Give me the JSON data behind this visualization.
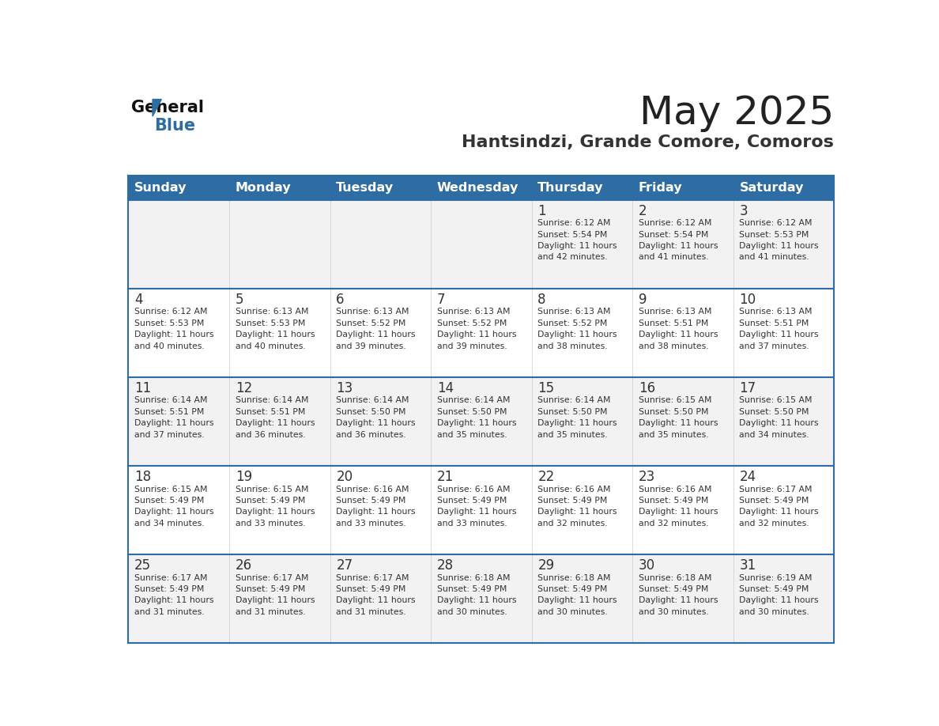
{
  "title": "May 2025",
  "subtitle": "Hantsindzi, Grande Comore, Comoros",
  "header_bg": "#2E6DA4",
  "header_text_color": "#FFFFFF",
  "days_of_week": [
    "Sunday",
    "Monday",
    "Tuesday",
    "Wednesday",
    "Thursday",
    "Friday",
    "Saturday"
  ],
  "cell_bg_odd": "#F2F2F2",
  "cell_bg_even": "#FFFFFF",
  "cell_text_color": "#333333",
  "grid_line_color": "#2E6DA4",
  "title_color": "#222222",
  "subtitle_color": "#333333",
  "calendar": [
    [
      {
        "day": "",
        "info": ""
      },
      {
        "day": "",
        "info": ""
      },
      {
        "day": "",
        "info": ""
      },
      {
        "day": "",
        "info": ""
      },
      {
        "day": "1",
        "info": "Sunrise: 6:12 AM\nSunset: 5:54 PM\nDaylight: 11 hours\nand 42 minutes."
      },
      {
        "day": "2",
        "info": "Sunrise: 6:12 AM\nSunset: 5:54 PM\nDaylight: 11 hours\nand 41 minutes."
      },
      {
        "day": "3",
        "info": "Sunrise: 6:12 AM\nSunset: 5:53 PM\nDaylight: 11 hours\nand 41 minutes."
      }
    ],
    [
      {
        "day": "4",
        "info": "Sunrise: 6:12 AM\nSunset: 5:53 PM\nDaylight: 11 hours\nand 40 minutes."
      },
      {
        "day": "5",
        "info": "Sunrise: 6:13 AM\nSunset: 5:53 PM\nDaylight: 11 hours\nand 40 minutes."
      },
      {
        "day": "6",
        "info": "Sunrise: 6:13 AM\nSunset: 5:52 PM\nDaylight: 11 hours\nand 39 minutes."
      },
      {
        "day": "7",
        "info": "Sunrise: 6:13 AM\nSunset: 5:52 PM\nDaylight: 11 hours\nand 39 minutes."
      },
      {
        "day": "8",
        "info": "Sunrise: 6:13 AM\nSunset: 5:52 PM\nDaylight: 11 hours\nand 38 minutes."
      },
      {
        "day": "9",
        "info": "Sunrise: 6:13 AM\nSunset: 5:51 PM\nDaylight: 11 hours\nand 38 minutes."
      },
      {
        "day": "10",
        "info": "Sunrise: 6:13 AM\nSunset: 5:51 PM\nDaylight: 11 hours\nand 37 minutes."
      }
    ],
    [
      {
        "day": "11",
        "info": "Sunrise: 6:14 AM\nSunset: 5:51 PM\nDaylight: 11 hours\nand 37 minutes."
      },
      {
        "day": "12",
        "info": "Sunrise: 6:14 AM\nSunset: 5:51 PM\nDaylight: 11 hours\nand 36 minutes."
      },
      {
        "day": "13",
        "info": "Sunrise: 6:14 AM\nSunset: 5:50 PM\nDaylight: 11 hours\nand 36 minutes."
      },
      {
        "day": "14",
        "info": "Sunrise: 6:14 AM\nSunset: 5:50 PM\nDaylight: 11 hours\nand 35 minutes."
      },
      {
        "day": "15",
        "info": "Sunrise: 6:14 AM\nSunset: 5:50 PM\nDaylight: 11 hours\nand 35 minutes."
      },
      {
        "day": "16",
        "info": "Sunrise: 6:15 AM\nSunset: 5:50 PM\nDaylight: 11 hours\nand 35 minutes."
      },
      {
        "day": "17",
        "info": "Sunrise: 6:15 AM\nSunset: 5:50 PM\nDaylight: 11 hours\nand 34 minutes."
      }
    ],
    [
      {
        "day": "18",
        "info": "Sunrise: 6:15 AM\nSunset: 5:49 PM\nDaylight: 11 hours\nand 34 minutes."
      },
      {
        "day": "19",
        "info": "Sunrise: 6:15 AM\nSunset: 5:49 PM\nDaylight: 11 hours\nand 33 minutes."
      },
      {
        "day": "20",
        "info": "Sunrise: 6:16 AM\nSunset: 5:49 PM\nDaylight: 11 hours\nand 33 minutes."
      },
      {
        "day": "21",
        "info": "Sunrise: 6:16 AM\nSunset: 5:49 PM\nDaylight: 11 hours\nand 33 minutes."
      },
      {
        "day": "22",
        "info": "Sunrise: 6:16 AM\nSunset: 5:49 PM\nDaylight: 11 hours\nand 32 minutes."
      },
      {
        "day": "23",
        "info": "Sunrise: 6:16 AM\nSunset: 5:49 PM\nDaylight: 11 hours\nand 32 minutes."
      },
      {
        "day": "24",
        "info": "Sunrise: 6:17 AM\nSunset: 5:49 PM\nDaylight: 11 hours\nand 32 minutes."
      }
    ],
    [
      {
        "day": "25",
        "info": "Sunrise: 6:17 AM\nSunset: 5:49 PM\nDaylight: 11 hours\nand 31 minutes."
      },
      {
        "day": "26",
        "info": "Sunrise: 6:17 AM\nSunset: 5:49 PM\nDaylight: 11 hours\nand 31 minutes."
      },
      {
        "day": "27",
        "info": "Sunrise: 6:17 AM\nSunset: 5:49 PM\nDaylight: 11 hours\nand 31 minutes."
      },
      {
        "day": "28",
        "info": "Sunrise: 6:18 AM\nSunset: 5:49 PM\nDaylight: 11 hours\nand 30 minutes."
      },
      {
        "day": "29",
        "info": "Sunrise: 6:18 AM\nSunset: 5:49 PM\nDaylight: 11 hours\nand 30 minutes."
      },
      {
        "day": "30",
        "info": "Sunrise: 6:18 AM\nSunset: 5:49 PM\nDaylight: 11 hours\nand 30 minutes."
      },
      {
        "day": "31",
        "info": "Sunrise: 6:19 AM\nSunset: 5:49 PM\nDaylight: 11 hours\nand 30 minutes."
      }
    ]
  ]
}
